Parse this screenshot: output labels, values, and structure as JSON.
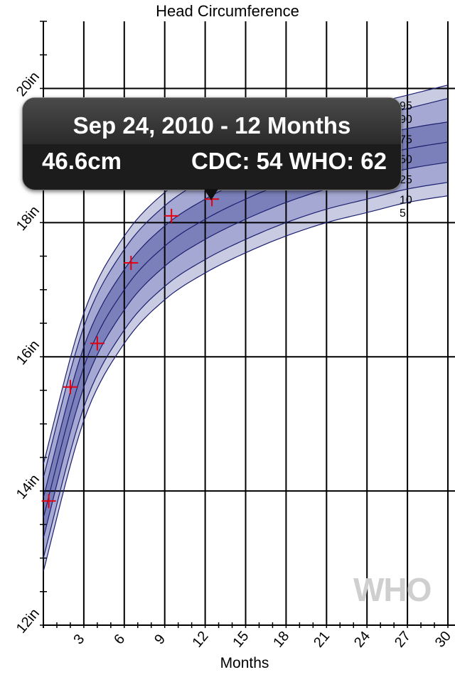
{
  "chart_data": {
    "type": "line",
    "title": "Head Circumference",
    "xlabel": "Months",
    "ylabel": "",
    "x_unit": "months",
    "y_unit": "in",
    "xlim": [
      0,
      30
    ],
    "ylim": [
      12,
      21
    ],
    "x_ticks": [
      "3",
      "6",
      "9",
      "12",
      "15",
      "18",
      "21",
      "24",
      "27",
      "30"
    ],
    "y_ticks": [
      "12in",
      "14in",
      "16in",
      "18in",
      "20in"
    ],
    "grid": true,
    "percentile_labels": [
      "95",
      "90",
      "75",
      "50",
      "25",
      "10",
      "5"
    ],
    "percentiles": [
      {
        "label": "95",
        "x": [
          0,
          3,
          6,
          9,
          12,
          15,
          18,
          21,
          24,
          27,
          30
        ],
        "y": [
          14.4,
          16.65,
          17.8,
          18.45,
          18.85,
          19.15,
          19.4,
          19.6,
          19.75,
          19.9,
          20.05
        ]
      },
      {
        "label": "90",
        "x": [
          0,
          3,
          6,
          9,
          12,
          15,
          18,
          21,
          24,
          27,
          30
        ],
        "y": [
          14.2,
          16.45,
          17.6,
          18.25,
          18.65,
          18.95,
          19.2,
          19.4,
          19.55,
          19.7,
          19.85
        ]
      },
      {
        "label": "75",
        "x": [
          0,
          3,
          6,
          9,
          12,
          15,
          18,
          21,
          24,
          27,
          30
        ],
        "y": [
          13.9,
          16.15,
          17.3,
          17.95,
          18.35,
          18.65,
          18.9,
          19.1,
          19.25,
          19.4,
          19.5
        ]
      },
      {
        "label": "50",
        "x": [
          0,
          3,
          6,
          9,
          12,
          15,
          18,
          21,
          24,
          27,
          30
        ],
        "y": [
          13.6,
          15.85,
          17.0,
          17.65,
          18.05,
          18.35,
          18.6,
          18.8,
          18.95,
          19.1,
          19.2
        ]
      },
      {
        "label": "25",
        "x": [
          0,
          3,
          6,
          9,
          12,
          15,
          18,
          21,
          24,
          27,
          30
        ],
        "y": [
          13.3,
          15.55,
          16.7,
          17.35,
          17.75,
          18.05,
          18.3,
          18.5,
          18.65,
          18.8,
          18.9
        ]
      },
      {
        "label": "10",
        "x": [
          0,
          3,
          6,
          9,
          12,
          15,
          18,
          21,
          24,
          27,
          30
        ],
        "y": [
          13.0,
          15.25,
          16.4,
          17.05,
          17.45,
          17.75,
          18.0,
          18.2,
          18.35,
          18.5,
          18.6
        ]
      },
      {
        "label": "5",
        "x": [
          0,
          3,
          6,
          9,
          12,
          15,
          18,
          21,
          24,
          27,
          30
        ],
        "y": [
          12.8,
          15.05,
          16.2,
          16.85,
          17.25,
          17.55,
          17.8,
          18.0,
          18.15,
          18.3,
          18.4
        ]
      }
    ],
    "measurements": {
      "x": [
        0.4,
        2.0,
        4.0,
        6.5,
        9.5,
        12.5
      ],
      "y": [
        13.85,
        15.55,
        16.2,
        17.4,
        18.1,
        18.35
      ]
    },
    "tooltip": {
      "line1": "Sep 24, 2010 - 12 Months",
      "value": "46.6cm",
      "percentiles": "CDC: 54 WHO: 62",
      "x": 12.5,
      "y": 18.35
    },
    "watermark": "WHO",
    "colors": {
      "band_outer": "#c9cbe2",
      "band_mid": "#a4a8d2",
      "band_inner": "#7b80ba",
      "percentile_line": "#1c1f6e",
      "marker": "#e4000f",
      "grid": "#000000",
      "watermark": "#cfcfcf"
    }
  }
}
